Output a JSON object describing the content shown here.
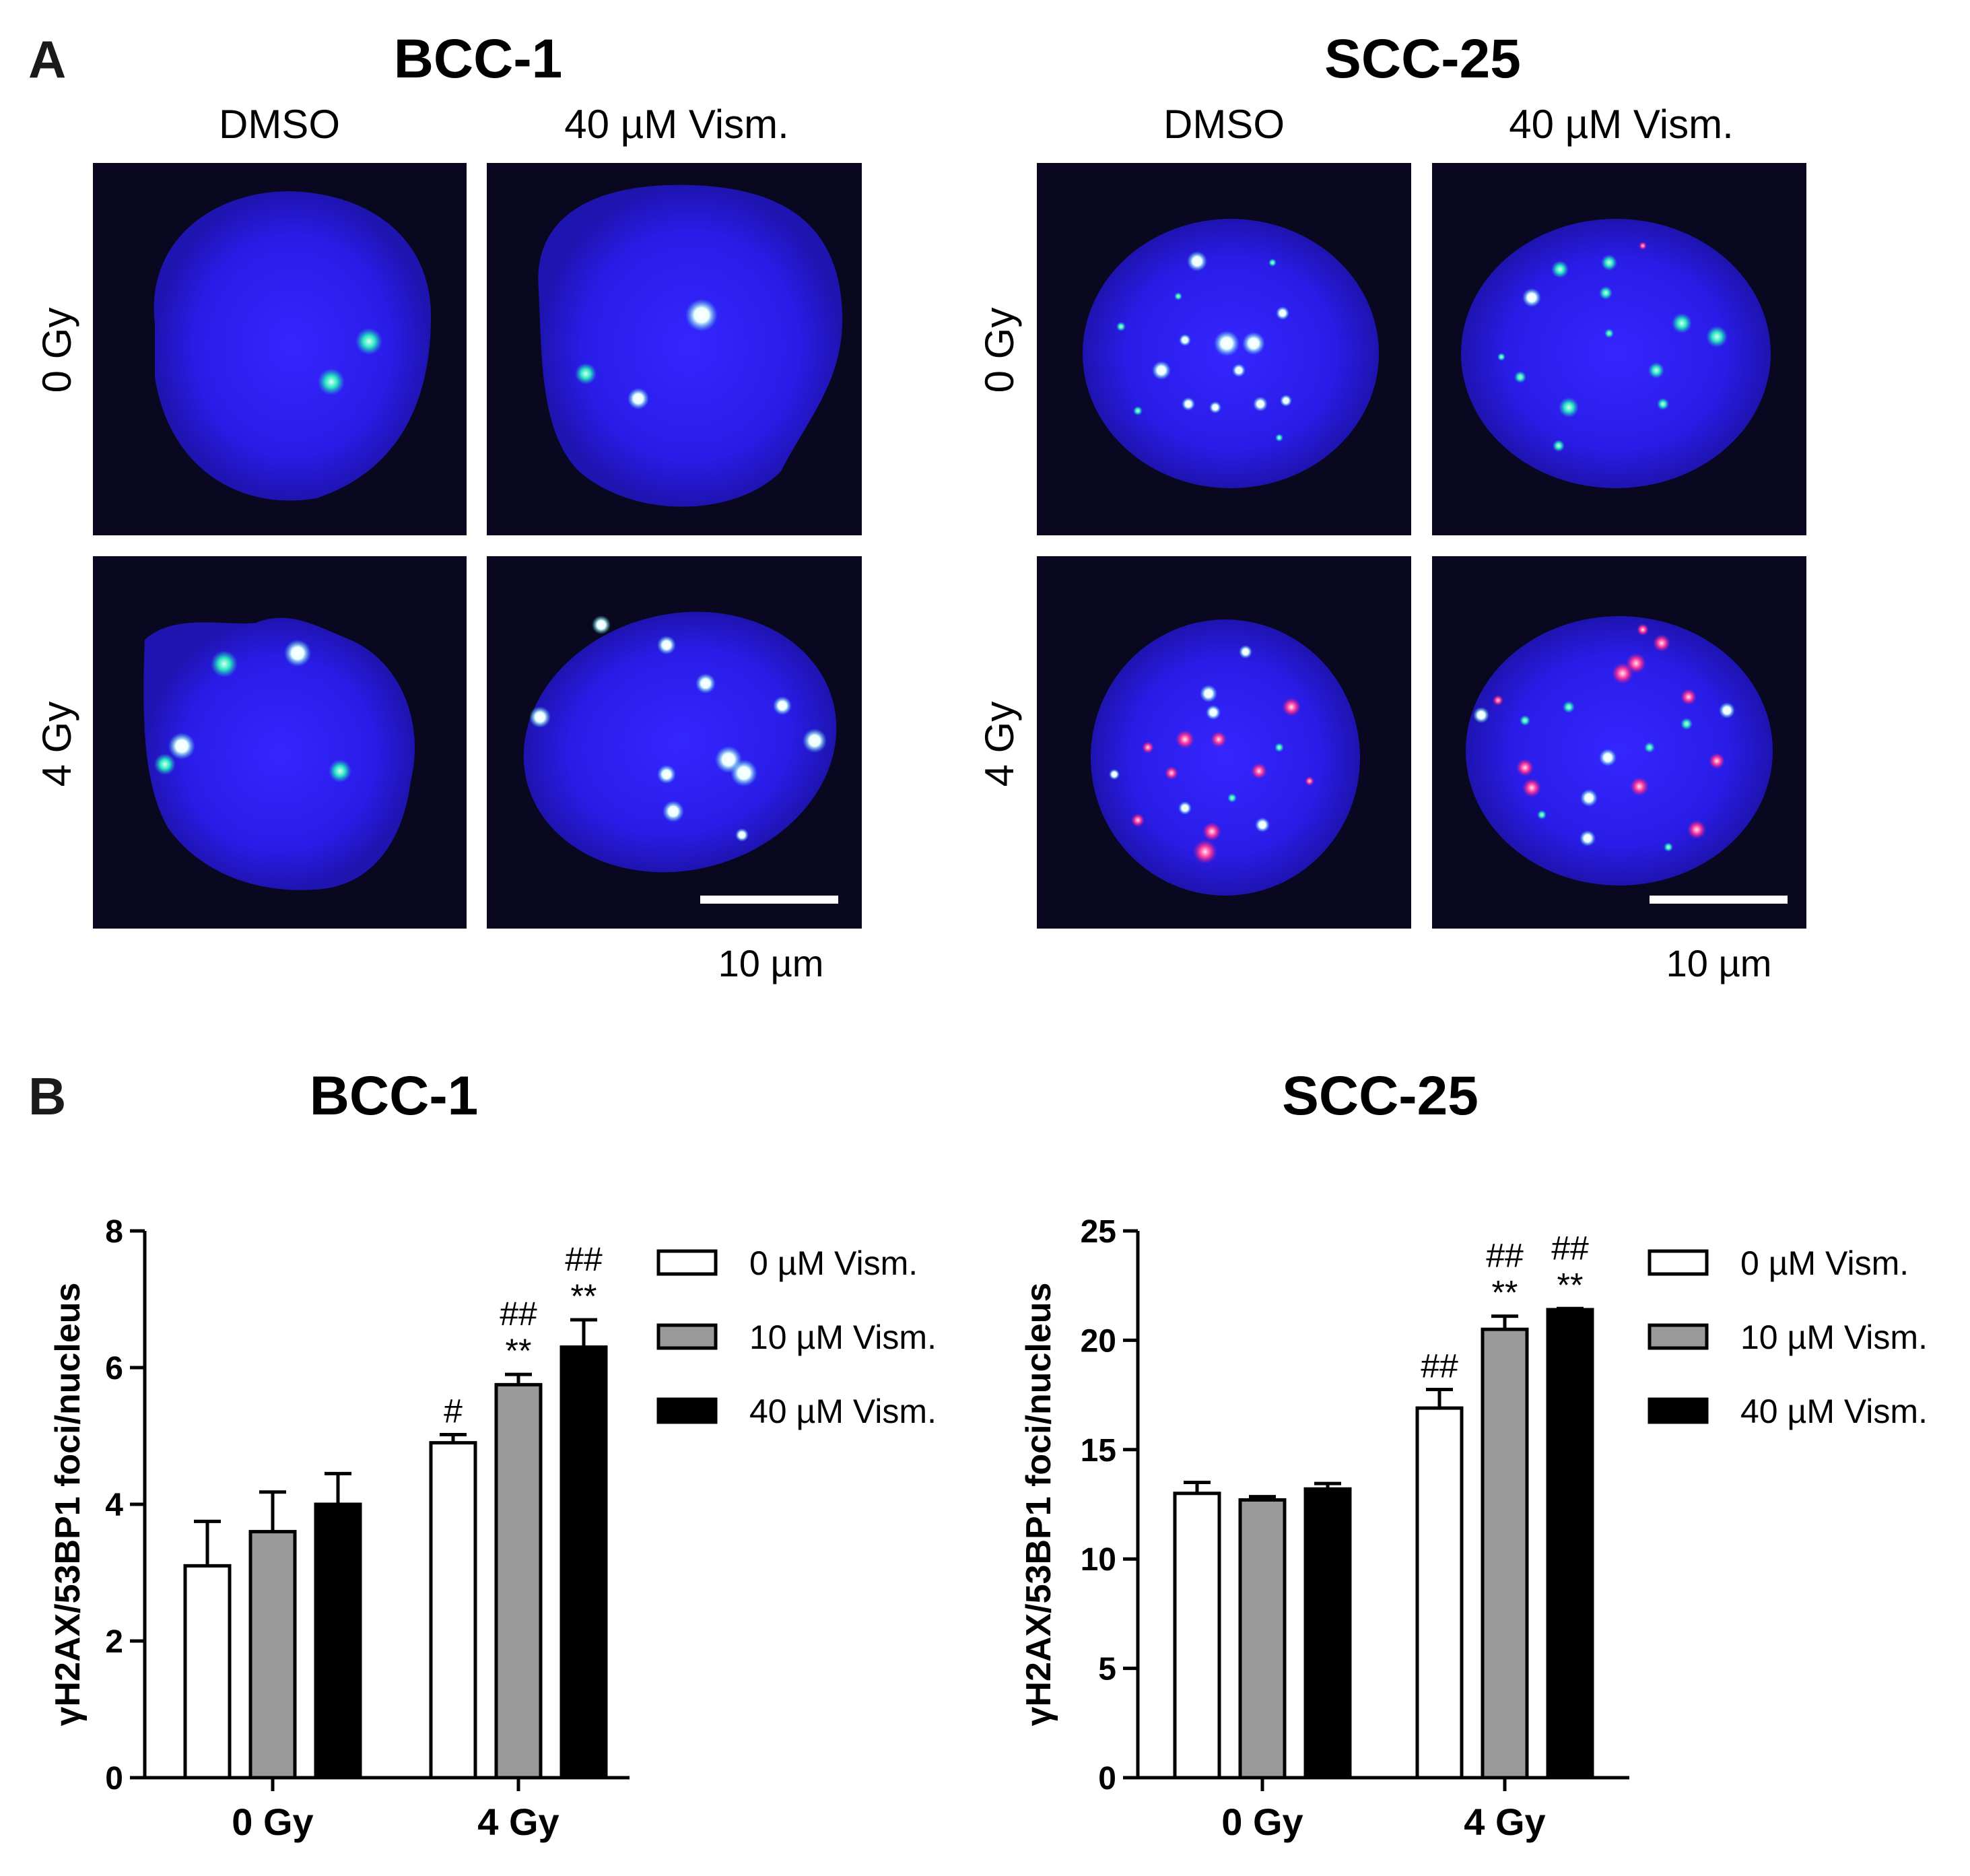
{
  "panel_a": {
    "letter": "A",
    "scale_bar_label": "10 µm",
    "cell_lines": [
      {
        "title": "BCC-1",
        "columns": [
          "DMSO",
          "40 µM Vism."
        ],
        "rows": [
          "0 Gy",
          "4 Gy"
        ]
      },
      {
        "title": "SCC-25",
        "columns": [
          "DMSO",
          "40 µM Vism."
        ],
        "rows": [
          "0 Gy",
          "4 Gy"
        ]
      }
    ],
    "colors": {
      "nucleus": "#2a1cf0",
      "background": "#0a0820",
      "focus_bright": "#f4ffff",
      "focus_green": "#2ee8c8",
      "focus_red": "#ff3aa0"
    }
  },
  "panel_b": {
    "letter": "B"
  },
  "chart_data": [
    {
      "type": "bar",
      "title": "BCC-1",
      "ylabel": "γH2AX/53BP1 foci/nucleus",
      "xlabel": "",
      "categories": [
        "0 Gy",
        "4 Gy"
      ],
      "ylim": [
        0,
        8
      ],
      "yticks": [
        "0",
        "2",
        "4",
        "6",
        "8"
      ],
      "series": [
        {
          "name": "0 µM Vism.",
          "color": "#ffffff",
          "values": [
            3.1,
            4.9
          ],
          "errors": [
            0.65,
            0.12
          ],
          "annotations": [
            "",
            "#"
          ]
        },
        {
          "name": "10 µM Vism.",
          "color": "#9a9a9a",
          "values": [
            3.6,
            5.75
          ],
          "errors": [
            0.58,
            0.15
          ],
          "annotations": [
            "",
            "##\n**"
          ]
        },
        {
          "name": "40 µM Vism.",
          "color": "#000000",
          "values": [
            4.0,
            6.3
          ],
          "errors": [
            0.45,
            0.4
          ],
          "annotations": [
            "",
            "##\n**"
          ]
        }
      ],
      "legend_position": "right"
    },
    {
      "type": "bar",
      "title": "SCC-25",
      "ylabel": "γH2AX/53BP1 foci/nucleus",
      "xlabel": "",
      "categories": [
        "0 Gy",
        "4 Gy"
      ],
      "ylim": [
        0,
        25
      ],
      "yticks": [
        "0",
        "5",
        "10",
        "15",
        "20",
        "25"
      ],
      "series": [
        {
          "name": "0 µM Vism.",
          "color": "#ffffff",
          "values": [
            13.0,
            16.9
          ],
          "errors": [
            0.5,
            0.85
          ],
          "annotations": [
            "",
            "##"
          ]
        },
        {
          "name": "10 µM Vism.",
          "color": "#9a9a9a",
          "values": [
            12.7,
            20.5
          ],
          "errors": [
            0.15,
            0.6
          ],
          "annotations": [
            "",
            "##\n**"
          ]
        },
        {
          "name": "40 µM Vism.",
          "color": "#000000",
          "values": [
            13.2,
            21.4
          ],
          "errors": [
            0.25,
            0.05
          ],
          "annotations": [
            "",
            "##\n**"
          ]
        }
      ],
      "legend_position": "right"
    }
  ]
}
